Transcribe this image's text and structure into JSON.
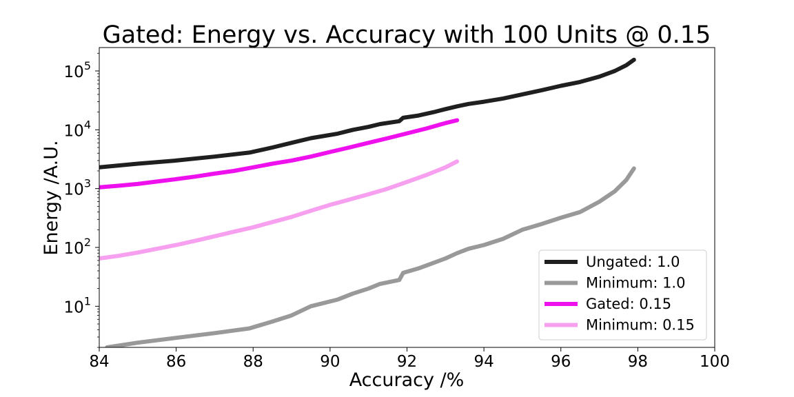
{
  "chart_data": {
    "type": "line",
    "title": "Gated: Energy vs. Accuracy with 100 Units @ 0.15",
    "xlabel": "Accuracy /%",
    "ylabel": "Energy /A.U.",
    "xlim": [
      84,
      100
    ],
    "ylim": [
      2,
      250000
    ],
    "yscale": "log",
    "xticks": [
      84,
      86,
      88,
      90,
      92,
      94,
      96,
      98,
      100
    ],
    "yticks": [
      10,
      100,
      1000,
      10000,
      100000
    ],
    "grid": false,
    "legend_position": "lower-right",
    "series": [
      {
        "name": "Ungated: 1.0",
        "color": "#1f1f1f",
        "x": [
          84.0,
          85.0,
          86.0,
          87.0,
          87.9,
          88.5,
          89.0,
          89.5,
          90.2,
          90.6,
          91.0,
          91.3,
          91.8,
          91.9,
          92.3,
          92.7,
          93.0,
          93.3,
          93.6,
          94.0,
          94.5,
          95.0,
          95.5,
          96.0,
          96.5,
          97.0,
          97.4,
          97.7,
          97.9
        ],
        "y": [
          2300,
          2650,
          3000,
          3500,
          4100,
          5000,
          6000,
          7200,
          8600,
          10000,
          11200,
          12500,
          14000,
          16000,
          17500,
          20000,
          22500,
          25000,
          27500,
          30000,
          34000,
          40000,
          47000,
          56000,
          65000,
          80000,
          100000,
          125000,
          155000
        ]
      },
      {
        "name": "Minimum: 1.0",
        "color": "#999999",
        "x": [
          84.2,
          85.0,
          86.0,
          87.0,
          87.9,
          88.5,
          89.0,
          89.5,
          90.2,
          90.6,
          91.0,
          91.3,
          91.8,
          91.9,
          92.3,
          92.7,
          93.0,
          93.3,
          93.6,
          94.0,
          94.5,
          95.0,
          95.5,
          96.0,
          96.5,
          97.0,
          97.4,
          97.7,
          97.9
        ],
        "y": [
          2,
          2.4,
          2.9,
          3.5,
          4.2,
          5.5,
          7,
          10,
          13,
          16.5,
          20,
          24,
          28,
          37,
          44,
          55,
          65,
          80,
          95,
          110,
          140,
          200,
          250,
          320,
          400,
          600,
          900,
          1400,
          2200
        ]
      },
      {
        "name": "Gated: 0.15",
        "color": "#ee11ee",
        "x": [
          84.0,
          84.5,
          85.0,
          85.5,
          86.0,
          86.5,
          87.0,
          87.5,
          88.0,
          88.5,
          89.0,
          89.5,
          90.0,
          90.5,
          91.0,
          91.5,
          92.0,
          92.5,
          93.0,
          93.3
        ],
        "y": [
          1050,
          1120,
          1200,
          1320,
          1450,
          1600,
          1800,
          2000,
          2300,
          2650,
          3000,
          3500,
          4200,
          5000,
          6000,
          7200,
          8700,
          10500,
          13000,
          14500
        ]
      },
      {
        "name": "Minimum: 0.15",
        "color": "#f7a0f0",
        "x": [
          84.0,
          84.5,
          85.0,
          85.5,
          86.0,
          86.5,
          87.0,
          87.5,
          88.0,
          88.5,
          89.0,
          89.5,
          90.0,
          90.5,
          91.0,
          91.5,
          92.0,
          92.5,
          93.0,
          93.3
        ],
        "y": [
          65,
          72,
          82,
          95,
          110,
          130,
          155,
          185,
          220,
          270,
          330,
          420,
          530,
          650,
          800,
          1000,
          1300,
          1700,
          2300,
          2900
        ]
      }
    ]
  }
}
